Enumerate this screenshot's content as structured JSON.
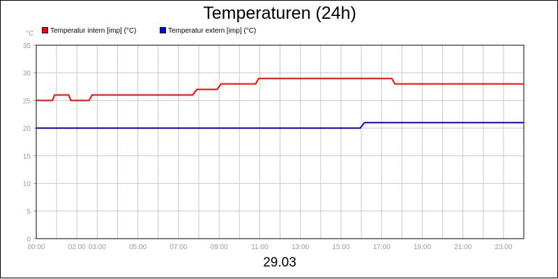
{
  "chart_data": {
    "type": "line",
    "title": "Temperaturen (24h)",
    "y_unit": "°C",
    "date_label": "29.03",
    "ylim": [
      0,
      35
    ],
    "y_ticks": [
      0,
      5,
      10,
      15,
      20,
      25,
      30,
      35
    ],
    "x_range_hours": [
      0,
      24
    ],
    "x_tick_labels": [
      {
        "h": 0,
        "label": "00:00"
      },
      {
        "h": 2,
        "label": "02:00"
      },
      {
        "h": 3,
        "label": "03:00"
      },
      {
        "h": 5,
        "label": "05:00"
      },
      {
        "h": 7,
        "label": "07:00"
      },
      {
        "h": 9,
        "label": "09:00"
      },
      {
        "h": 11,
        "label": "11:00"
      },
      {
        "h": 13,
        "label": "13:00"
      },
      {
        "h": 15,
        "label": "15:00"
      },
      {
        "h": 17,
        "label": "17:00"
      },
      {
        "h": 19,
        "label": "19:00"
      },
      {
        "h": 21,
        "label": "21:00"
      },
      {
        "h": 23,
        "label": "23:00"
      }
    ],
    "grid": true,
    "legend_position": "top-left",
    "series": [
      {
        "name": "Temperatur intern [imp] (°C)",
        "color": "#ff0000",
        "points": [
          [
            0.0,
            25
          ],
          [
            0.8,
            25
          ],
          [
            0.9,
            26
          ],
          [
            1.6,
            26
          ],
          [
            1.7,
            25
          ],
          [
            2.6,
            25
          ],
          [
            2.75,
            26
          ],
          [
            7.7,
            26
          ],
          [
            7.9,
            27
          ],
          [
            8.9,
            27
          ],
          [
            9.1,
            28
          ],
          [
            10.8,
            28
          ],
          [
            10.95,
            29
          ],
          [
            17.5,
            29
          ],
          [
            17.65,
            28
          ],
          [
            24.0,
            28
          ]
        ]
      },
      {
        "name": "Temperatur extern [imp] (°C)",
        "color": "#0000ff",
        "points": [
          [
            0.0,
            20
          ],
          [
            15.95,
            20
          ],
          [
            16.15,
            21
          ],
          [
            24.0,
            21
          ]
        ]
      }
    ]
  }
}
